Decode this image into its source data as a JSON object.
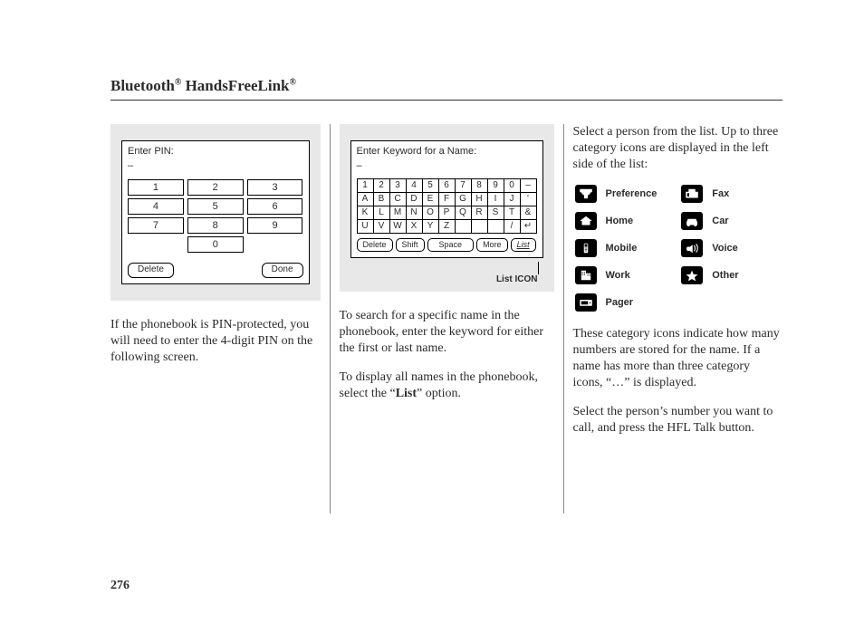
{
  "heading": {
    "prefix": "Bluetooth",
    "mid": " HandsFreeLink",
    "reg": "®"
  },
  "pageNumber": "276",
  "pin": {
    "title": "Enter PIN:",
    "cursor": "–",
    "rows": [
      [
        "1",
        "2",
        "3"
      ],
      [
        "4",
        "5",
        "6"
      ],
      [
        "7",
        "8",
        "9"
      ],
      [
        "0"
      ]
    ],
    "delete": "Delete",
    "done": "Done"
  },
  "col1_text": "If the phonebook is PIN-protected, you will need to enter the 4-digit PIN on the following screen.",
  "kbd": {
    "title": "Enter Keyword for a Name:",
    "cursor": "–",
    "rows": [
      [
        "1",
        "2",
        "3",
        "4",
        "5",
        "6",
        "7",
        "8",
        "9",
        "0",
        "–"
      ],
      [
        "A",
        "B",
        "C",
        "D",
        "E",
        "F",
        "G",
        "H",
        "I",
        "J",
        "'"
      ],
      [
        "K",
        "L",
        "M",
        "N",
        "O",
        "P",
        "Q",
        "R",
        "S",
        "T",
        "&"
      ],
      [
        "U",
        "V",
        "W",
        "X",
        "Y",
        "Z",
        "",
        "",
        "",
        "/",
        "↵"
      ]
    ],
    "delete": "Delete",
    "shift": "Shift",
    "space": "Space",
    "more": "More",
    "list": "List",
    "annotation": "List ICON"
  },
  "col2_p1": "To search for a specific name in the phonebook, enter the keyword for either the first or last name.",
  "col2_p2a": "To display all names in the phonebook, select the “",
  "col2_p2bold": "List",
  "col2_p2b": "” option.",
  "col3_p1": "Select a person from the list. Up to three category icons are displayed in the left side of the list:",
  "categories": {
    "preference": "Preference",
    "fax": "Fax",
    "home": "Home",
    "car": "Car",
    "mobile": "Mobile",
    "voice": "Voice",
    "work": "Work",
    "other": "Other",
    "pager": "Pager"
  },
  "col3_p2": "These category icons indicate how many numbers are stored for the name. If a name has more than three category icons, “…” is displayed.",
  "col3_p3": "Select the person’s number you want to call, and press the HFL Talk button."
}
